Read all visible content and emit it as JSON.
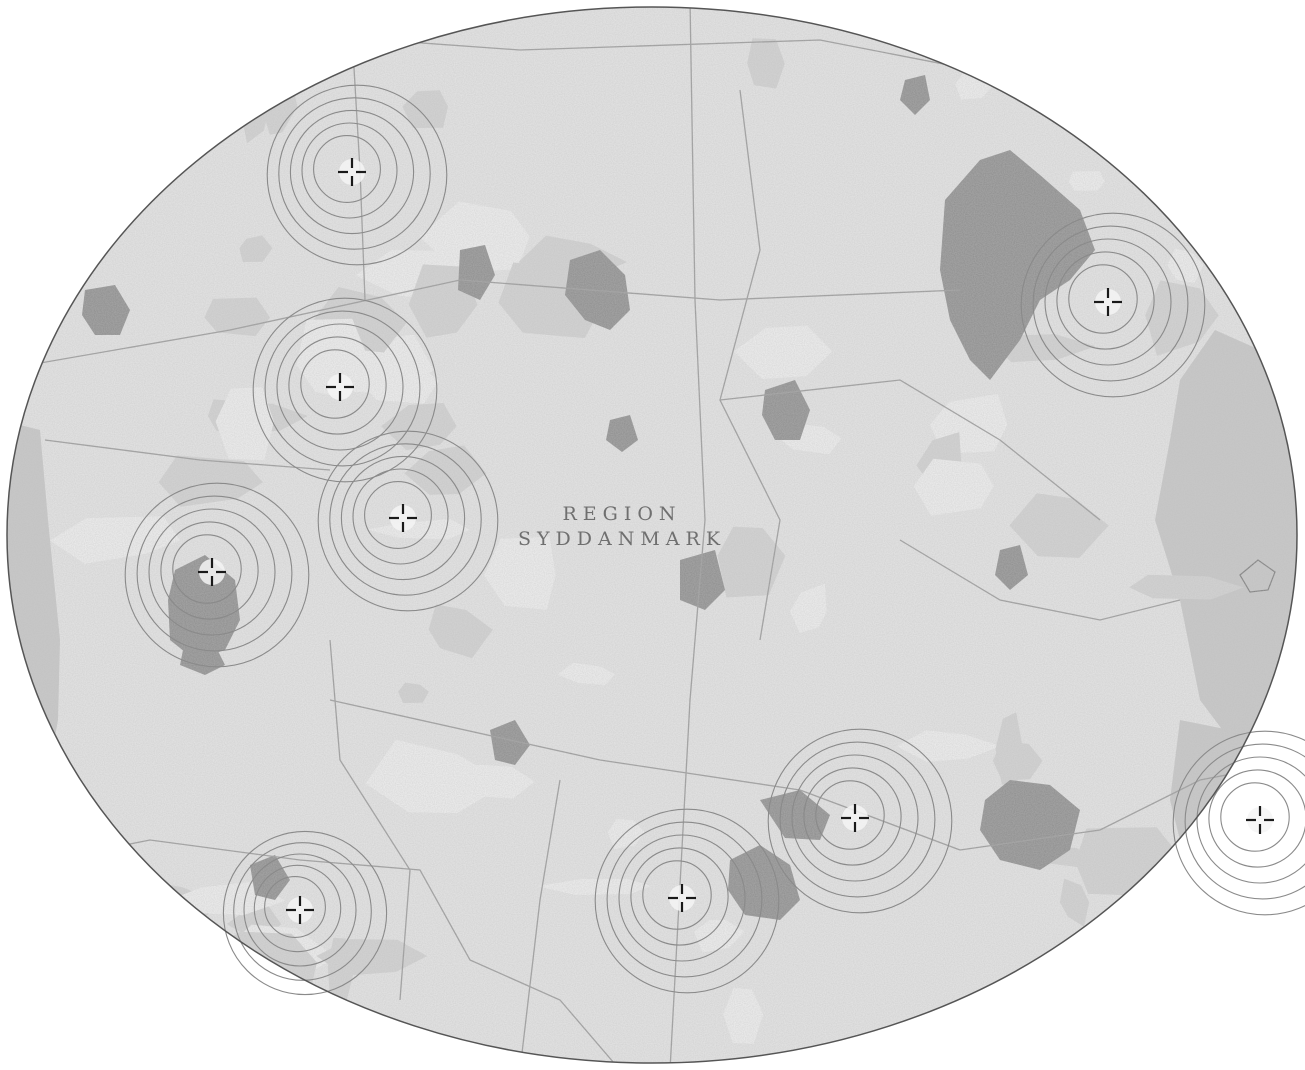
{
  "map": {
    "region_label_line1": "REGION",
    "region_label_line2": "SYDDANMARK",
    "colors": {
      "land": "#e6e6e6",
      "land_light": "#f0f0f0",
      "fields": "#d4d4d4",
      "urban": "#8c8c8c",
      "water": "#c9c9c9",
      "roads": "#a0a0a0",
      "rings": "#8a8a8a",
      "crosshair": "#1a1a1a",
      "outline": "#555555",
      "background": "#ffffff"
    },
    "marker_count": 9,
    "marker_icon": "crosshair-icon",
    "ring_icon": "concentric-range-rings"
  }
}
